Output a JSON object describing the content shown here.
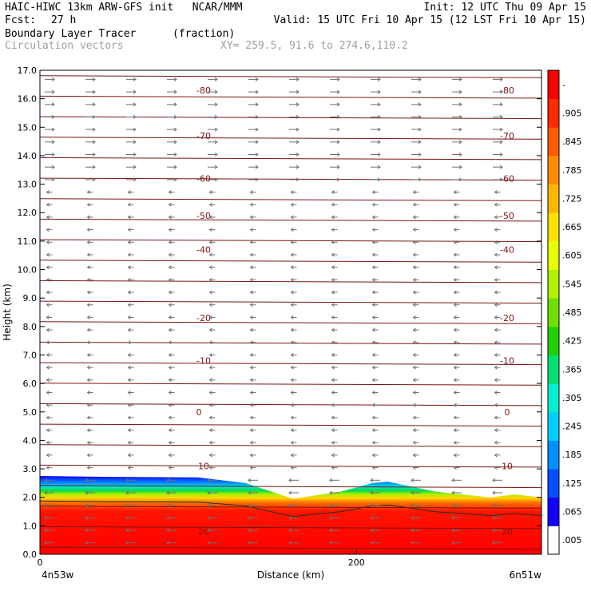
{
  "header": {
    "line1_left": "HAIC-HIWC 13km ARW-GFS init   NCAR/MMM",
    "line1_right": "Init: 12 UTC Thu 09 Apr 15",
    "fcst_label": "Fcst:",
    "fcst_value": "27 h",
    "valid": "Valid: 15 UTC Fri 10 Apr 15 (12 LST Fri 10 Apr 15)",
    "field": "Boundary Layer Tracer",
    "units": "(fraction)",
    "overlay": "Circulation vectors",
    "xy": "XY= 259.5, 91.6 to 274.6,110.2"
  },
  "chart_data": {
    "type": "heatmap",
    "title": "Boundary Layer Tracer",
    "units": "(fraction)",
    "xlabel": "Distance (km)",
    "ylabel": "Height (km)",
    "xlim": [
      0,
      317
    ],
    "ylim": [
      0.0,
      17.0
    ],
    "y_ticks": [
      "0.0",
      "1.0",
      "2.0",
      "3.0",
      "4.0",
      "5.0",
      "6.0",
      "7.0",
      "8.0",
      "9.0",
      "10.0",
      "11.0",
      "12.0",
      "13.0",
      "14.0",
      "15.0",
      "16.0",
      "17.0"
    ],
    "x_ticks": [
      {
        "x": 0,
        "label": "0"
      },
      {
        "x": 200,
        "label": "200"
      }
    ],
    "x_endpoints": {
      "left": "4n53w",
      "right": "6n51w"
    },
    "colorbar": {
      "labels": [
        ".005",
        ".065",
        ".125",
        ".185",
        ".245",
        ".305",
        ".365",
        ".425",
        ".485",
        ".545",
        ".605",
        ".665",
        ".725",
        ".785",
        ".845",
        ".905",
        "-"
      ],
      "colors": [
        "#ffffff",
        "#1400ff",
        "#0050ff",
        "#0090ff",
        "#00d0ff",
        "#00f0d0",
        "#00e070",
        "#20d000",
        "#70e000",
        "#b0f000",
        "#e8ff00",
        "#ffe000",
        "#ffb800",
        "#ff8c00",
        "#ff5c00",
        "#ff2a00",
        "#ff0000"
      ]
    },
    "tracer_top_km": [
      [
        0,
        2.75
      ],
      [
        40,
        2.72
      ],
      [
        100,
        2.7
      ],
      [
        130,
        2.5
      ],
      [
        160,
        1.95
      ],
      [
        190,
        2.2
      ],
      [
        210,
        2.5
      ],
      [
        220,
        2.55
      ],
      [
        250,
        2.2
      ],
      [
        285,
        2.0
      ],
      [
        300,
        2.1
      ],
      [
        317,
        2.0
      ]
    ],
    "isotherm_labels": [
      {
        "label": "-80",
        "km": 16.3
      },
      {
        "label": "-70",
        "km": 14.7
      },
      {
        "label": "-60",
        "km": 13.2
      },
      {
        "label": "-50",
        "km": 11.9
      },
      {
        "label": "-40",
        "km": 10.7
      },
      {
        "label": "-20",
        "km": 8.3
      },
      {
        "label": "-10",
        "km": 6.8
      },
      {
        "label": "0",
        "km": 5.0
      },
      {
        "label": "10",
        "km": 3.1
      },
      {
        "label": "20",
        "km": 0.8
      }
    ]
  }
}
